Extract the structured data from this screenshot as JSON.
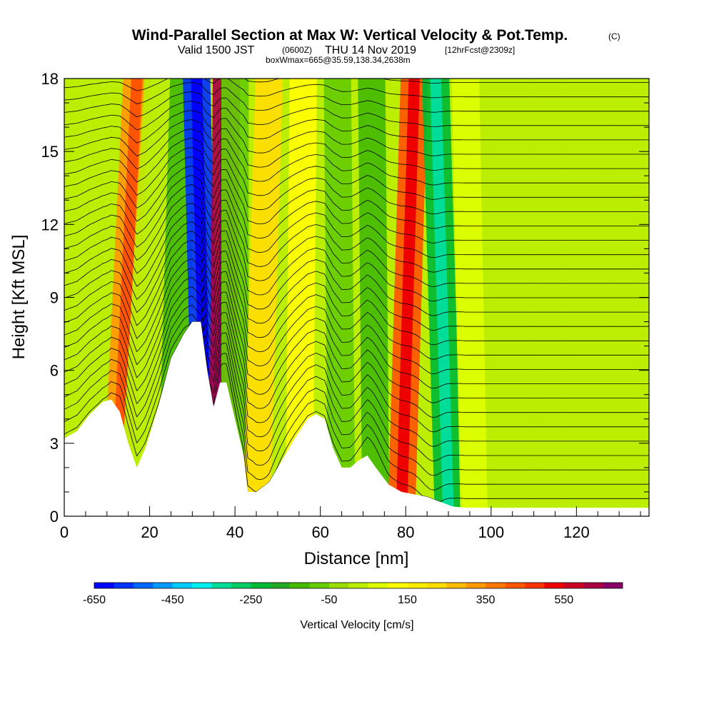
{
  "header": {
    "title": "Wind-Parallel Section at Max W: Vertical Velocity & Pot.Temp.",
    "copyright": "(C)",
    "valid_prefix": "Valid 1500 JST",
    "valid_utc": "(0600Z)",
    "valid_date": "THU 14 Nov 2019",
    "forecast_info": "[12hrFcst@2309z]",
    "box_info": "boxWmax=665@35.59,138.34,2638m"
  },
  "chart_data": {
    "type": "heatmap",
    "title": "Wind-Parallel Section at Max W: Vertical Velocity & Pot.Temp.",
    "xlabel": "Distance [nm]",
    "ylabel": "Height [Kft MSL]",
    "xlim": [
      0,
      137
    ],
    "ylim": [
      0,
      18
    ],
    "xticks": [
      0,
      20,
      40,
      60,
      80,
      100,
      120
    ],
    "yticks": [
      0,
      3,
      6,
      9,
      12,
      15,
      18
    ],
    "terrain_profile": {
      "x": [
        0,
        3,
        6,
        9,
        11,
        13,
        15,
        17,
        19,
        22,
        25,
        28,
        30,
        32,
        33.5,
        35,
        36.5,
        38,
        40,
        42,
        43,
        45,
        48,
        51,
        54,
        57,
        59,
        61,
        63,
        65,
        67,
        69,
        71,
        73,
        76,
        79,
        82,
        85,
        88,
        91,
        94,
        100,
        110,
        120,
        130,
        137
      ],
      "height_kft": [
        3.2,
        3.5,
        4.2,
        4.7,
        4.8,
        4.3,
        3.0,
        2.0,
        2.8,
        4.5,
        6.5,
        7.5,
        8.0,
        8.0,
        6.0,
        4.5,
        5.5,
        5.5,
        4.0,
        2.5,
        1.0,
        1.0,
        1.4,
        2.3,
        3.2,
        4.0,
        4.2,
        4.0,
        2.8,
        2.0,
        2.0,
        2.3,
        2.5,
        2.0,
        1.3,
        1.0,
        0.9,
        0.8,
        0.6,
        0.4,
        0.35,
        0.35,
        0.35,
        0.35,
        0.35,
        0.35
      ]
    },
    "vertical_velocity_bands": [
      {
        "x_bottom": 12,
        "x_top": 17,
        "w": 300
      },
      {
        "x_bottom": 16,
        "x_top": 22,
        "w": 0
      },
      {
        "x_bottom": 25,
        "x_top": 28,
        "w": -150
      },
      {
        "x_bottom": 33.5,
        "x_top": 31,
        "w": -600
      },
      {
        "x_bottom": 37,
        "x_top": 38,
        "w": 600
      },
      {
        "x_bottom": 40,
        "x_top": 40,
        "w": -100
      },
      {
        "x_bottom": 45,
        "x_top": 48,
        "w": 200
      },
      {
        "x_bottom": 55,
        "x_top": 56,
        "w": 100
      },
      {
        "x_bottom": 65,
        "x_top": 64,
        "w": -100
      },
      {
        "x_bottom": 73,
        "x_top": 72,
        "w": -150
      },
      {
        "x_bottom": 79,
        "x_top": 82,
        "w": 400
      },
      {
        "x_bottom": 90,
        "x_top": 87,
        "w": -250
      },
      {
        "x_bottom": 96,
        "x_top": 94,
        "w": 50
      },
      {
        "x_bottom": 113,
        "x_top": 113,
        "w": 0
      },
      {
        "x_bottom": 132,
        "x_top": 131,
        "w": 0
      }
    ],
    "colorbar": {
      "label": "Vertical Velocity [cm/s]",
      "tick_labels": [
        "-650",
        "-450",
        "-250",
        "-50",
        "150",
        "350",
        "550"
      ],
      "tick_values": [
        -650,
        -450,
        -250,
        -50,
        150,
        350,
        550
      ],
      "min": -650,
      "max": 700,
      "step": 50,
      "colors": [
        "#0000ff",
        "#0033ff",
        "#0066ff",
        "#0099ff",
        "#00ccff",
        "#00eeee",
        "#00dd99",
        "#00cc66",
        "#00bb33",
        "#22aa22",
        "#44bb00",
        "#66cc00",
        "#99dd00",
        "#bbee00",
        "#ddff00",
        "#ffff00",
        "#ffee00",
        "#ffdd00",
        "#ffbb00",
        "#ff9900",
        "#ff7700",
        "#ff5500",
        "#ff3300",
        "#ee0000",
        "#cc0022",
        "#aa0044",
        "#880066"
      ]
    }
  }
}
